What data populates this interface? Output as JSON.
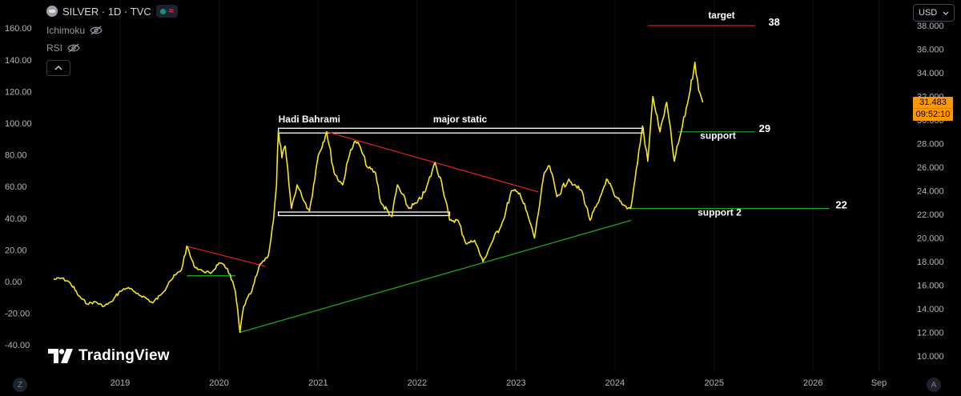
{
  "header": {
    "symbol": "SILVER · 1D · TVC",
    "status_icon": "market-status-wave-icon",
    "indicators": [
      {
        "name": "Ichimoku",
        "icon": "eye-crossed-icon"
      },
      {
        "name": "RSI",
        "icon": "eye-crossed-icon"
      }
    ],
    "collapse_icon": "chevron-up-icon"
  },
  "currency": {
    "selected": "USD"
  },
  "price_tag": {
    "price": "31.483",
    "countdown": "09:52:10",
    "color": "#ff9800"
  },
  "branding": {
    "logo_text": "TradingView"
  },
  "corner_buttons": {
    "left": "Z",
    "right": "A"
  },
  "colors": {
    "price_line": "#f5e52a",
    "resistance": "#d61f1f",
    "support": "#1fa21f",
    "zone": "#ffffff",
    "background": "#000000"
  },
  "chart_data": {
    "type": "line",
    "series": [
      {
        "values": [
          [
            "2018-05-01",
            16.5
          ],
          [
            "2018-06-01",
            16.6
          ],
          [
            "2018-07-01",
            16.2
          ],
          [
            "2018-08-01",
            15.1
          ],
          [
            "2018-09-01",
            14.4
          ],
          [
            "2018-10-01",
            14.6
          ],
          [
            "2018-11-01",
            14.2
          ],
          [
            "2018-12-01",
            14.6
          ],
          [
            "2019-01-01",
            15.5
          ],
          [
            "2019-02-01",
            15.8
          ],
          [
            "2019-03-01",
            15.3
          ],
          [
            "2019-04-01",
            15.0
          ],
          [
            "2019-05-01",
            14.5
          ],
          [
            "2019-06-01",
            15.2
          ],
          [
            "2019-07-01",
            16.3
          ],
          [
            "2019-08-15",
            17.3
          ],
          [
            "2019-09-04",
            19.3
          ],
          [
            "2019-10-01",
            17.6
          ],
          [
            "2019-11-01",
            17.2
          ],
          [
            "2019-12-01",
            17.0
          ],
          [
            "2020-01-01",
            17.9
          ],
          [
            "2020-02-01",
            17.4
          ],
          [
            "2020-03-01",
            15.5
          ],
          [
            "2020-03-18",
            12.0
          ],
          [
            "2020-04-01",
            14.2
          ],
          [
            "2020-05-01",
            15.5
          ],
          [
            "2020-06-01",
            17.8
          ],
          [
            "2020-07-01",
            18.5
          ],
          [
            "2020-07-20",
            21.5
          ],
          [
            "2020-07-31",
            24.5
          ],
          [
            "2020-08-07",
            29.1
          ],
          [
            "2020-08-20",
            26.8
          ],
          [
            "2020-09-01",
            27.8
          ],
          [
            "2020-09-24",
            22.5
          ],
          [
            "2020-10-15",
            24.5
          ],
          [
            "2020-11-01",
            23.6
          ],
          [
            "2020-11-30",
            22.3
          ],
          [
            "2020-12-15",
            24.5
          ],
          [
            "2021-01-01",
            27.0
          ],
          [
            "2021-02-01",
            29.0
          ],
          [
            "2021-03-01",
            25.5
          ],
          [
            "2021-04-01",
            24.5
          ],
          [
            "2021-05-01",
            27.5
          ],
          [
            "2021-05-18",
            28.2
          ],
          [
            "2021-06-01",
            27.9
          ],
          [
            "2021-07-01",
            26.0
          ],
          [
            "2021-08-01",
            25.5
          ],
          [
            "2021-08-20",
            23.0
          ],
          [
            "2021-09-30",
            21.8
          ],
          [
            "2021-10-20",
            24.5
          ],
          [
            "2021-12-01",
            22.5
          ],
          [
            "2022-01-01",
            23.0
          ],
          [
            "2022-02-01",
            24.0
          ],
          [
            "2022-03-08",
            26.4
          ],
          [
            "2022-04-01",
            24.8
          ],
          [
            "2022-05-01",
            21.5
          ],
          [
            "2022-06-01",
            21.5
          ],
          [
            "2022-07-01",
            19.5
          ],
          [
            "2022-08-01",
            19.8
          ],
          [
            "2022-09-01",
            18.0
          ],
          [
            "2022-10-01",
            19.5
          ],
          [
            "2022-11-15",
            21.5
          ],
          [
            "2022-12-15",
            24.0
          ],
          [
            "2023-01-15",
            23.8
          ],
          [
            "2023-02-15",
            21.8
          ],
          [
            "2023-03-10",
            20.0
          ],
          [
            "2023-04-15",
            25.5
          ],
          [
            "2023-05-05",
            26.1
          ],
          [
            "2023-06-01",
            23.5
          ],
          [
            "2023-07-15",
            25.0
          ],
          [
            "2023-08-01",
            24.5
          ],
          [
            "2023-09-01",
            24.0
          ],
          [
            "2023-10-01",
            21.5
          ],
          [
            "2023-11-01",
            23.0
          ],
          [
            "2023-12-01",
            25.0
          ],
          [
            "2024-01-01",
            23.5
          ],
          [
            "2024-02-01",
            22.8
          ],
          [
            "2024-02-28",
            22.5
          ],
          [
            "2024-03-15",
            25.0
          ],
          [
            "2024-04-12",
            29.5
          ],
          [
            "2024-05-01",
            26.5
          ],
          [
            "2024-05-20",
            32.0
          ],
          [
            "2024-06-15",
            29.0
          ],
          [
            "2024-07-10",
            31.5
          ],
          [
            "2024-08-07",
            26.5
          ],
          [
            "2024-09-01",
            29.0
          ],
          [
            "2024-09-30",
            32.0
          ],
          [
            "2024-10-22",
            34.9
          ],
          [
            "2024-11-05",
            32.5
          ],
          [
            "2024-11-20",
            31.483
          ]
        ]
      }
    ],
    "y_axis_right": {
      "min": 10,
      "max": 38,
      "step": 2,
      "ticks": [
        "38.000",
        "36.000",
        "34.000",
        "32.000",
        "30.000",
        "28.000",
        "26.000",
        "24.000",
        "22.000",
        "20.000",
        "18.000",
        "16.000",
        "14.000",
        "12.000",
        "10.000"
      ]
    },
    "y_axis_left": {
      "min": -40,
      "max": 160,
      "step": 20,
      "ticks": [
        "160.00",
        "140.00",
        "120.00",
        "100.00",
        "80.00",
        "60.00",
        "40.00",
        "20.00",
        "0.00",
        "-20.00",
        "-40.00"
      ]
    },
    "x_axis": {
      "range": [
        "2018-03-01",
        "2026-09-30"
      ],
      "ticks": [
        {
          "label": "2019",
          "date": "2019-01-01"
        },
        {
          "label": "2020",
          "date": "2020-01-01"
        },
        {
          "label": "2021",
          "date": "2021-01-01"
        },
        {
          "label": "2022",
          "date": "2022-01-01"
        },
        {
          "label": "2023",
          "date": "2023-01-01"
        },
        {
          "label": "2024",
          "date": "2024-01-01"
        },
        {
          "label": "2025",
          "date": "2025-01-01"
        },
        {
          "label": "2026",
          "date": "2026-01-01"
        },
        {
          "label": "Sep",
          "date": "2026-09-01"
        }
      ]
    },
    "drawings": {
      "lines": [
        {
          "name": "target-line",
          "from": [
            "2024-05-01",
            38.0
          ],
          "to": [
            "2025-06-01",
            38.0
          ],
          "color": "#d61f1f"
        },
        {
          "name": "resistance-trendline-2019",
          "from": [
            "2019-09-04",
            19.3
          ],
          "to": [
            "2020-06-20",
            17.6
          ],
          "color": "#d61f1f"
        },
        {
          "name": "resistance-trendline-major",
          "from": [
            "2021-02-01",
            29.0
          ],
          "to": [
            "2023-03-25",
            23.9
          ],
          "color": "#d61f1f"
        },
        {
          "name": "support-flat-2019",
          "from": [
            "2019-09-04",
            16.8
          ],
          "to": [
            "2020-03-01",
            16.8
          ],
          "color": "#1fa21f"
        },
        {
          "name": "support-line-29",
          "from": [
            "2024-08-20",
            29.0
          ],
          "to": [
            "2025-06-01",
            29.0
          ],
          "color": "#1fa21f"
        },
        {
          "name": "support-line-22",
          "from": [
            "2024-02-20",
            22.5
          ],
          "to": [
            "2026-03-01",
            22.5
          ],
          "color": "#1fa21f"
        },
        {
          "name": "rising-support-trendline",
          "from": [
            "2020-03-18",
            12.0
          ],
          "to": [
            "2024-03-01",
            21.5
          ],
          "color": "#1fa21f"
        }
      ],
      "zones": [
        {
          "name": "major-static-zone",
          "from": "2020-08-07",
          "to": "2024-04-15",
          "low": 28.9,
          "high": 29.3,
          "color": "#ffffff"
        },
        {
          "name": "lower-static-zone",
          "from": "2020-08-07",
          "to": "2022-05-01",
          "low": 21.9,
          "high": 22.2,
          "color": "#ffffff"
        }
      ],
      "annotations": [
        {
          "name": "author-label",
          "text": "Hadi Bahrami",
          "x": "2020-08-07",
          "y": 29.8
        },
        {
          "name": "major-static-label",
          "text": "major static",
          "x": "2022-03-01",
          "y": 29.8
        },
        {
          "name": "target-label",
          "text": "target",
          "x": "2024-12-10",
          "y": 38.6
        },
        {
          "name": "target-value",
          "text": "38",
          "x": "2025-07-20",
          "y": 38.0
        },
        {
          "name": "support-label",
          "text": "support",
          "x": "2024-11-10",
          "y": 28.4
        },
        {
          "name": "support-value",
          "text": "29",
          "x": "2025-06-15",
          "y": 29.0
        },
        {
          "name": "support-2-label",
          "text": "support 2",
          "x": "2024-11-01",
          "y": 21.9
        },
        {
          "name": "support-2-value",
          "text": "22",
          "x": "2026-03-25",
          "y": 22.5
        }
      ]
    }
  }
}
